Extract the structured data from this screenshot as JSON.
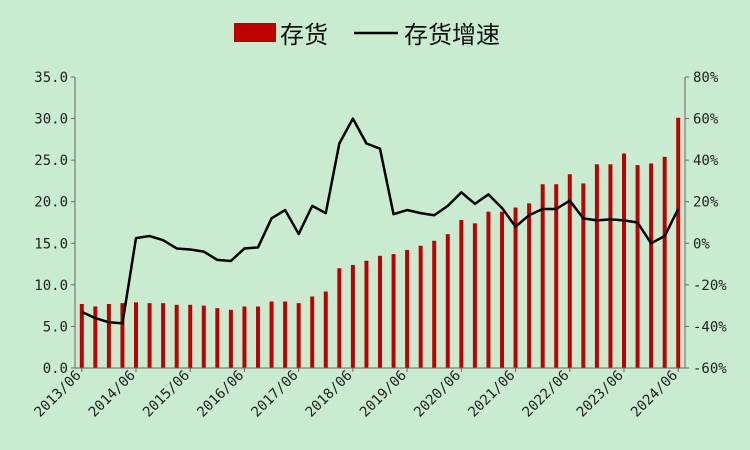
{
  "chart_data": {
    "type": "bar+line",
    "legend": [
      "存货",
      "存货增速"
    ],
    "legend_position": "top",
    "grid": false,
    "colors": {
      "bar": "#c00000",
      "line": "#000000",
      "background": "#c9ecd0"
    },
    "y_left": {
      "range": [
        0,
        35
      ],
      "ticks": [
        "0.0",
        "5.0",
        "10.0",
        "15.0",
        "20.0",
        "25.0",
        "30.0",
        "35.0"
      ]
    },
    "y_right": {
      "range": [
        -60,
        80
      ],
      "ticks": [
        "-60%",
        "-40%",
        "-20%",
        "0%",
        "20%",
        "40%",
        "60%",
        "80%"
      ]
    },
    "x_tick_labels": [
      "2013/06",
      "2014/06",
      "2015/06",
      "2016/06",
      "2017/06",
      "2018/06",
      "2019/06",
      "2020/06",
      "2021/06",
      "2022/06",
      "2023/06",
      "2024/06"
    ],
    "x_tick_indices": [
      0,
      4,
      8,
      12,
      16,
      20,
      24,
      28,
      32,
      36,
      40,
      44
    ],
    "inventory": [
      7.7,
      7.4,
      7.7,
      7.8,
      7.9,
      7.8,
      7.8,
      7.6,
      7.6,
      7.5,
      7.2,
      7.0,
      7.4,
      7.4,
      8.0,
      8.0,
      7.8,
      8.6,
      9.2,
      12.0,
      12.4,
      12.9,
      13.5,
      13.7,
      14.2,
      14.7,
      15.3,
      16.1,
      17.8,
      17.4,
      18.8,
      18.8,
      19.3,
      19.8,
      22.1,
      22.1,
      23.3,
      22.2,
      24.5,
      24.5,
      25.8,
      24.4,
      24.6,
      25.4,
      30.1
    ],
    "inventory_growth": [
      -33,
      -36,
      -38,
      -38.5,
      2.5,
      3.5,
      1.5,
      -2.5,
      -3,
      -4,
      -8,
      -8.5,
      -2.5,
      -2,
      12,
      16,
      4.5,
      18,
      14.5,
      48,
      60,
      48,
      45.5,
      14,
      16,
      14.5,
      13.5,
      18,
      24.5,
      19,
      23.5,
      17,
      8,
      13.5,
      16.5,
      16.5,
      20.5,
      12,
      11,
      11.5,
      11,
      10,
      0,
      3.5,
      16.5
    ]
  }
}
